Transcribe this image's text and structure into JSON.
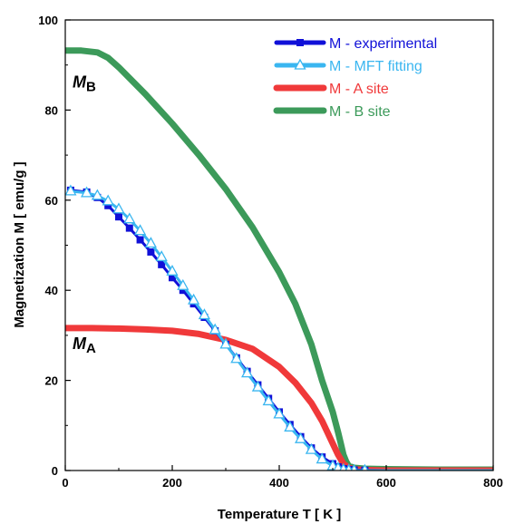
{
  "chart_data": {
    "type": "line",
    "title": "",
    "xlabel": "Temperature T [ K ]",
    "ylabel": "Magnetization M [ emu/g ]",
    "xlim": [
      0,
      800
    ],
    "ylim": [
      0,
      100
    ],
    "xticks": [
      "0",
      "200",
      "400",
      "600",
      "800"
    ],
    "yticks": [
      "0",
      "20",
      "40",
      "60",
      "80",
      "100"
    ],
    "grid": false,
    "legend_position": "top-right",
    "annotations": [
      {
        "main": "M",
        "sub": "B",
        "x": 0,
        "y": 85
      },
      {
        "main": "M",
        "sub": "A",
        "x": 0,
        "y": 27
      }
    ],
    "series": [
      {
        "name": "M - experimental",
        "color": "#1010d8",
        "marker": "square",
        "x": [
          10,
          40,
          60,
          80,
          100,
          120,
          140,
          160,
          180,
          200,
          220,
          240,
          260,
          280,
          300,
          320,
          340,
          360,
          380,
          400,
          420,
          440,
          460,
          480,
          500,
          510,
          520,
          530,
          540,
          560,
          600,
          650,
          700,
          750,
          800
        ],
        "y": [
          62.2,
          61.8,
          60.6,
          58.8,
          56.3,
          53.8,
          51.2,
          48.5,
          45.7,
          42.8,
          40.0,
          37.0,
          34.0,
          31.0,
          28.0,
          25.0,
          22.0,
          19.0,
          16.0,
          13.0,
          10.2,
          7.5,
          5.0,
          3.0,
          1.5,
          0.8,
          0.4,
          0.2,
          0.1,
          0.05,
          0.0,
          0.0,
          0.0,
          0.0,
          0.0
        ]
      },
      {
        "name": "M - MFT fitting",
        "color": "#3ab6f0",
        "marker": "triangle",
        "x": [
          10,
          40,
          60,
          80,
          100,
          120,
          140,
          160,
          180,
          200,
          220,
          240,
          260,
          280,
          300,
          320,
          340,
          360,
          380,
          400,
          420,
          440,
          460,
          480,
          500,
          510,
          520,
          530,
          540,
          560,
          600,
          650,
          700,
          750,
          800
        ],
        "y": [
          62.0,
          61.6,
          61.0,
          59.8,
          58.0,
          55.8,
          53.2,
          50.4,
          47.4,
          44.2,
          41.0,
          37.8,
          34.5,
          31.2,
          28.0,
          24.8,
          21.6,
          18.5,
          15.4,
          12.5,
          9.6,
          7.0,
          4.6,
          2.5,
          1.0,
          0.5,
          0.2,
          0.05,
          0.0,
          0.0,
          0.0,
          0.0,
          0.0,
          0.0,
          0.0
        ]
      },
      {
        "name": "M - A site",
        "color": "#f0393a",
        "marker": "none",
        "x": [
          0,
          50,
          100,
          150,
          200,
          250,
          300,
          350,
          400,
          430,
          460,
          480,
          500,
          510,
          520,
          530,
          540,
          560,
          600,
          700,
          800
        ],
        "y": [
          31.6,
          31.6,
          31.5,
          31.3,
          31.0,
          30.3,
          29.0,
          27.0,
          23.0,
          19.5,
          15.0,
          11.0,
          6.0,
          3.5,
          1.5,
          0.6,
          0.3,
          0.1,
          0.0,
          0.0,
          0.0
        ]
      },
      {
        "name": "M - B site",
        "color": "#3c9a5a",
        "marker": "none",
        "x": [
          0,
          30,
          60,
          80,
          100,
          150,
          200,
          250,
          300,
          350,
          400,
          430,
          460,
          480,
          500,
          510,
          515,
          520,
          525,
          530,
          540,
          560,
          600,
          700,
          800
        ],
        "y": [
          93.2,
          93.2,
          92.8,
          91.6,
          89.5,
          83.5,
          77.0,
          70.0,
          62.5,
          54.0,
          44.0,
          37.0,
          28.0,
          20.0,
          13.0,
          8.5,
          6.0,
          3.5,
          2.0,
          1.0,
          0.6,
          0.4,
          0.3,
          0.2,
          0.2
        ]
      }
    ]
  }
}
